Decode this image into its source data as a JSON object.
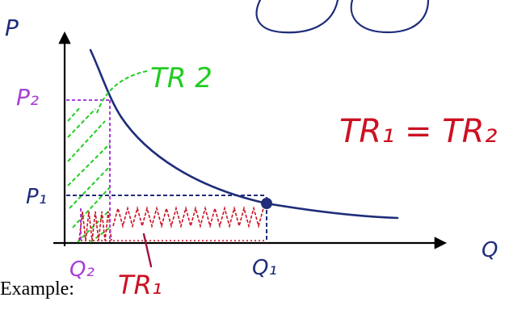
{
  "labels": {
    "p_axis": "P",
    "q_axis": "Q",
    "p1": "P₁",
    "p2": "P₂",
    "q1": "Q₁",
    "q2": "Q₂",
    "tr1": "TR₁",
    "tr2": "TR 2",
    "equation": "TR₁ = TR₂"
  },
  "caption": "Example:",
  "colors": {
    "axis": "#000000",
    "curve": "#1f2d7a",
    "green": "#22cc22",
    "red": "#cc1122",
    "purple": "#a83fd6",
    "dashed_blue": "#1f2d7a"
  }
}
